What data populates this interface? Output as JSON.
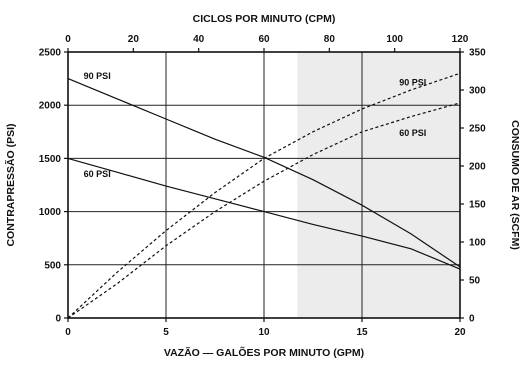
{
  "chart_data": {
    "type": "line",
    "title": "",
    "top_axis": {
      "label": "CICLOS POR MINUTO (CPM)",
      "range": [
        0,
        120
      ],
      "ticks": [
        0,
        20,
        40,
        60,
        80,
        100,
        120
      ]
    },
    "bottom_axis": {
      "label": "VAZÃO — GALÕES POR MINUTO (GPM)",
      "range": [
        0,
        20
      ],
      "ticks": [
        0,
        5,
        10,
        15,
        20
      ]
    },
    "left_axis": {
      "label": "CONTRAPRESSÃO (PSI)",
      "range": [
        0,
        2500
      ],
      "ticks": [
        0,
        500,
        1000,
        1500,
        2000,
        2500
      ]
    },
    "right_axis": {
      "label": "CONSUMO DE AR (SCFM)",
      "range": [
        0,
        350
      ],
      "ticks": [
        0,
        50,
        100,
        150,
        200,
        250,
        300,
        350
      ]
    },
    "grid": true,
    "shaded_region_x": [
      11.7,
      20
    ],
    "shade_color": "#ececec",
    "series": [
      {
        "name": "90 PSI",
        "style": "solid",
        "axis": "left",
        "x": [
          0,
          2.5,
          5,
          7.5,
          10,
          12.5,
          15,
          17.5,
          20
        ],
        "y": [
          2250,
          2060,
          1870,
          1680,
          1510,
          1300,
          1060,
          790,
          480
        ]
      },
      {
        "name": "60 PSI",
        "style": "solid",
        "axis": "left",
        "x": [
          0,
          2.5,
          5,
          7.5,
          10,
          12.5,
          15,
          17.5,
          20
        ],
        "y": [
          1500,
          1370,
          1240,
          1120,
          1000,
          880,
          770,
          650,
          460
        ]
      },
      {
        "name": "90 PSI",
        "style": "dashed",
        "axis": "right",
        "x": [
          0,
          2.5,
          5,
          7.5,
          10,
          12.5,
          15,
          17.5,
          20
        ],
        "y": [
          0,
          60,
          115,
          165,
          210,
          245,
          275,
          300,
          322
        ]
      },
      {
        "name": "60 PSI",
        "style": "dashed",
        "axis": "right",
        "x": [
          0,
          2.5,
          5,
          7.5,
          10,
          12.5,
          15,
          17.5,
          20
        ],
        "y": [
          0,
          45,
          95,
          140,
          180,
          215,
          245,
          265,
          283
        ]
      }
    ]
  }
}
